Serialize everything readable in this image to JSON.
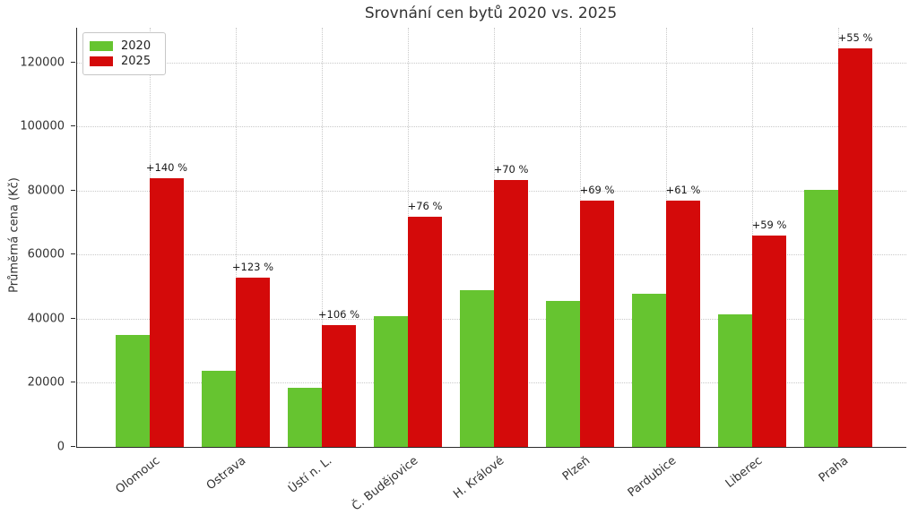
{
  "figure": {
    "title": "Srovnání cen bytů 2020 vs. 2025"
  },
  "chart_data": {
    "type": "bar",
    "title": "Srovnání cen bytů 2020 vs. 2025",
    "categories": [
      "Olomouc",
      "Ostrava",
      "Ústí n. L.",
      "Č. Budějovice",
      "H. Králové",
      "Plzeň",
      "Pardubice",
      "Liberec",
      "Praha"
    ],
    "series": [
      {
        "name": "2020",
        "color": "#66c430",
        "values": [
          35000,
          23800,
          18500,
          40800,
          49000,
          45600,
          47700,
          41500,
          80300
        ]
      },
      {
        "name": "2025",
        "color": "#d40a0a",
        "values": [
          84000,
          53000,
          38100,
          71800,
          83300,
          77000,
          76800,
          66000,
          124500
        ]
      }
    ],
    "annotations": [
      "+140 %",
      "+123 %",
      "+106 %",
      "+76 %",
      "+70 %",
      "+69 %",
      "+61 %",
      "+59 %",
      "+55 %"
    ],
    "xlabel": "",
    "ylabel": "Průměrná cena (Kč)",
    "ylim": [
      0,
      130900
    ],
    "yticks": [
      0,
      20000,
      40000,
      60000,
      80000,
      100000,
      120000
    ],
    "grid": true,
    "legend_position": "upper left"
  }
}
